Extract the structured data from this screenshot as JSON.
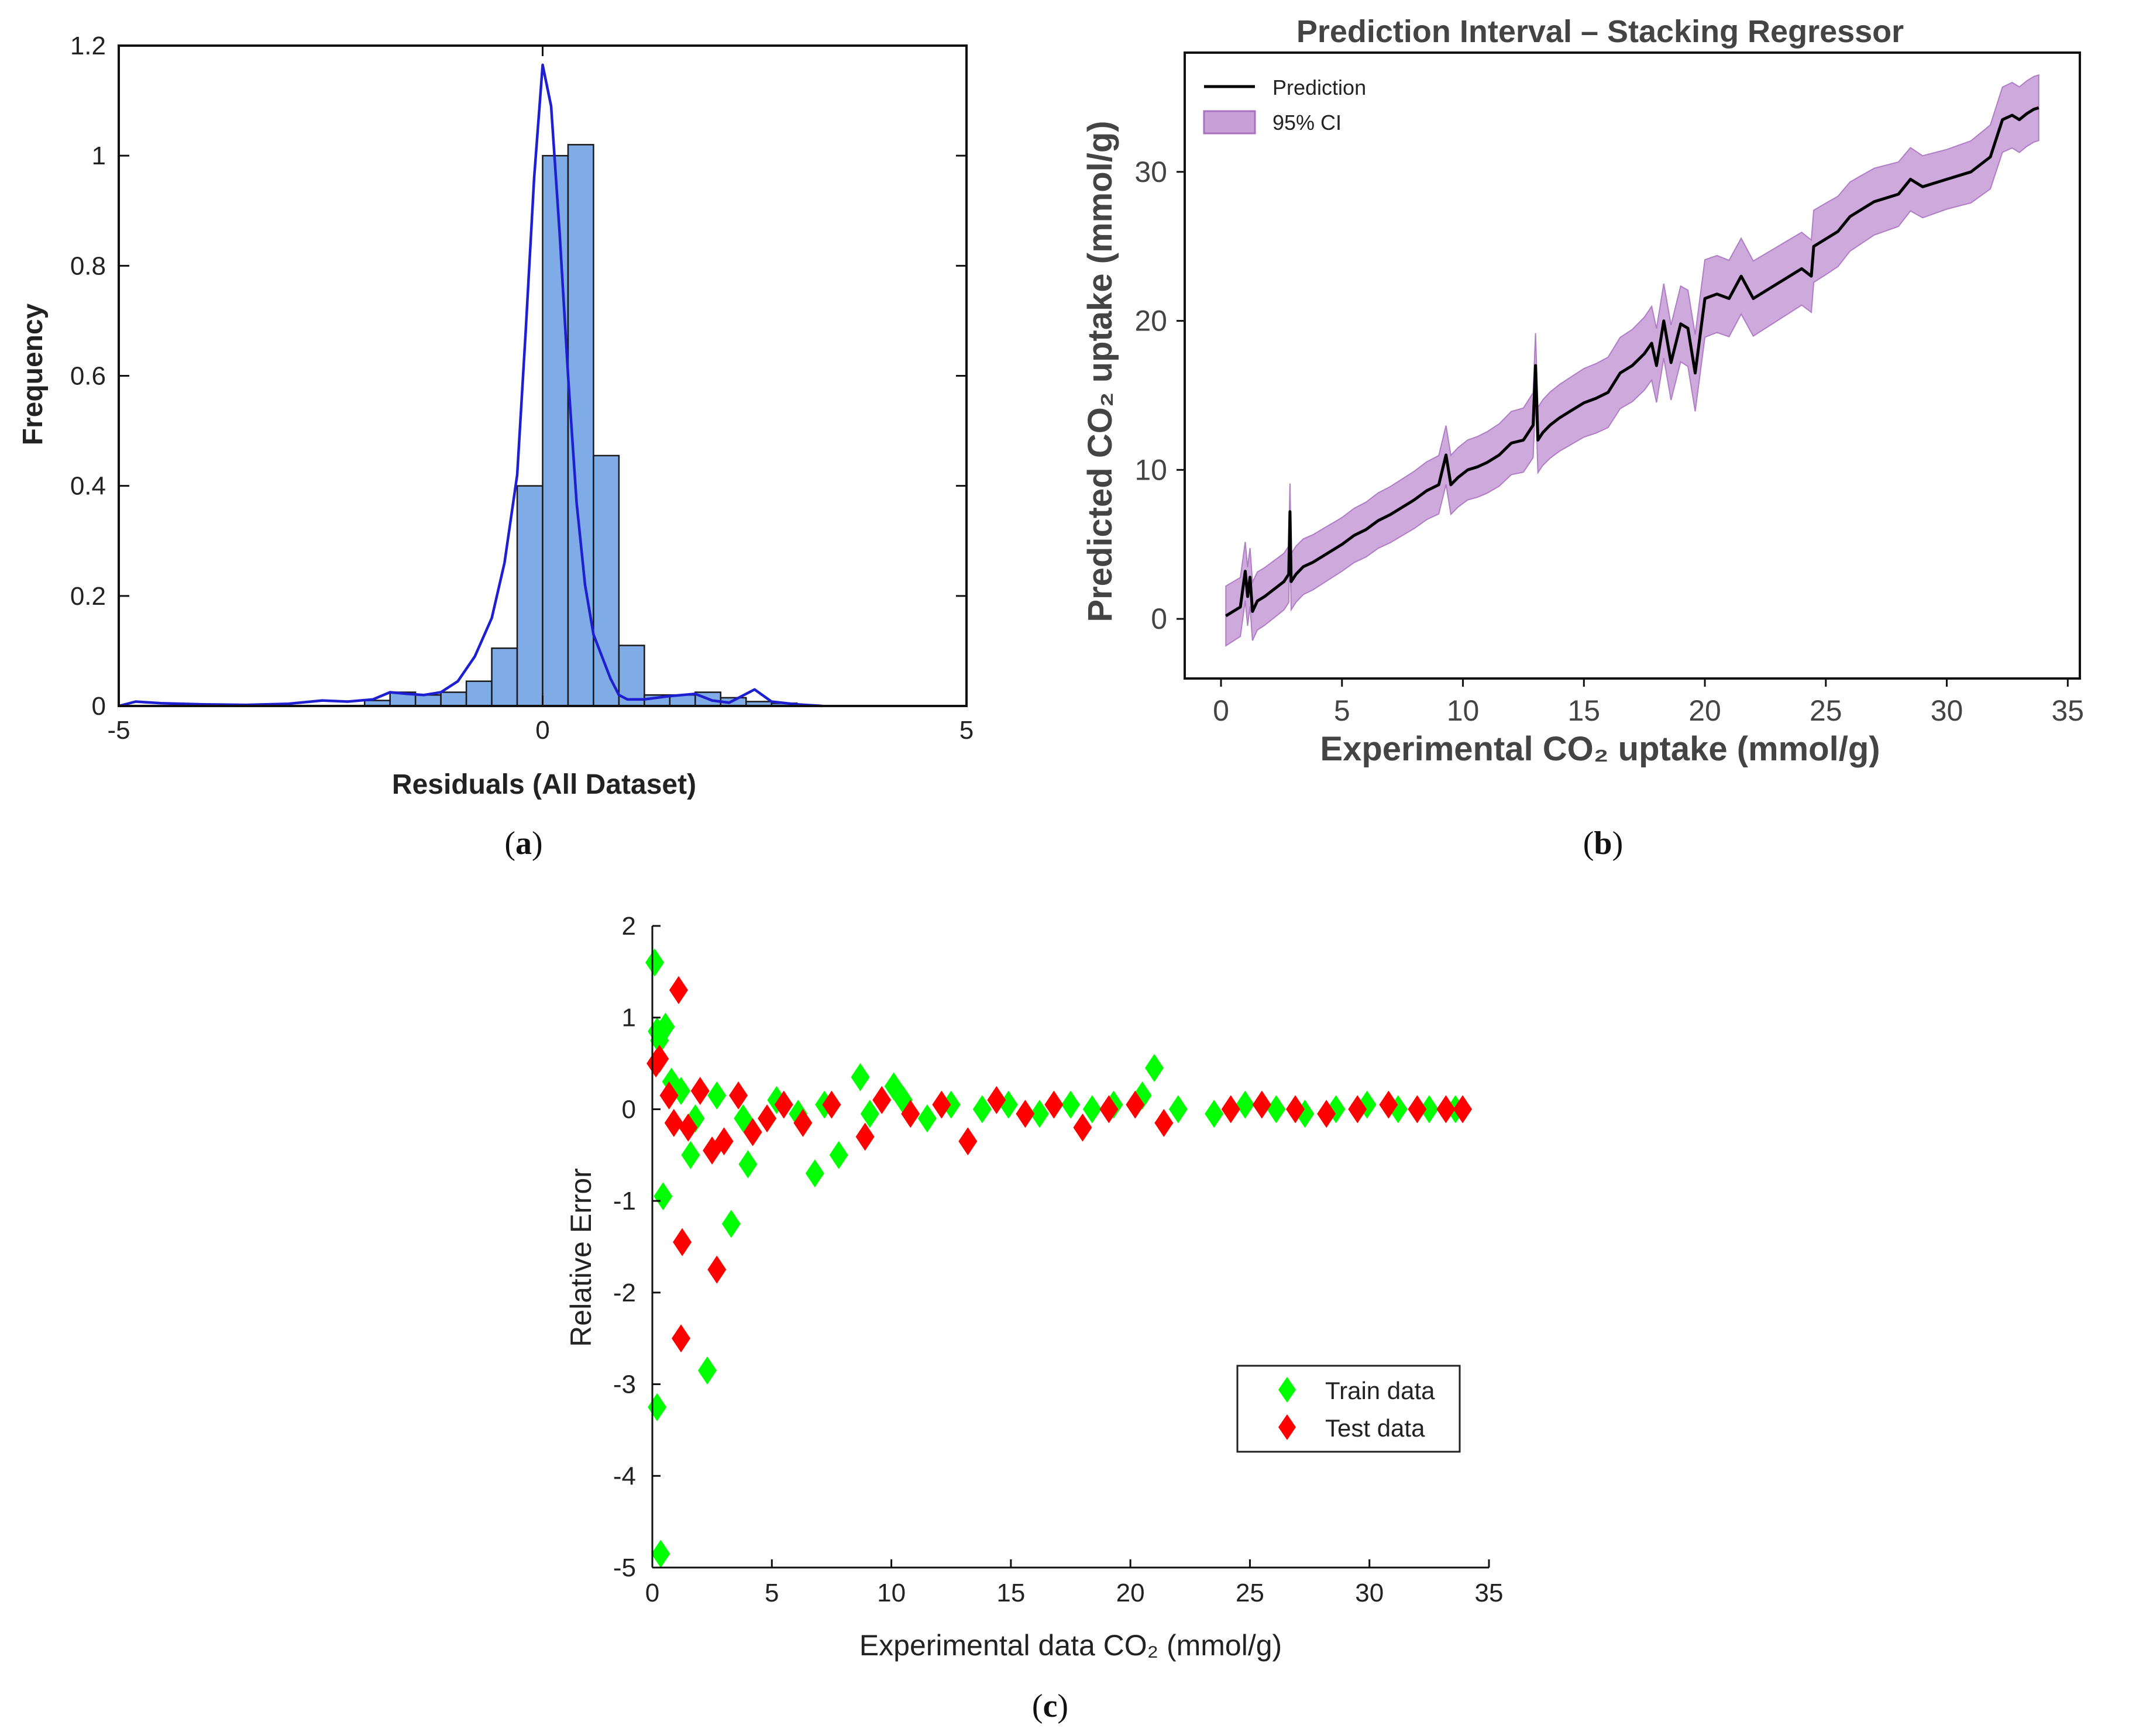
{
  "panel_labels": {
    "a": {
      "open": "(",
      "letter": "a",
      "close": ")"
    },
    "b": {
      "open": "(",
      "letter": "b",
      "close": ")"
    },
    "c": {
      "open": "(",
      "letter": "c",
      "close": ")"
    }
  },
  "chart_data": [
    {
      "id": "a",
      "type": "bar",
      "title": "",
      "xlabel": "Residuals (All Dataset)",
      "ylabel": "Frequency",
      "xlim": [
        -5,
        5
      ],
      "ylim": [
        0,
        1.2
      ],
      "xticks": [
        -5,
        0,
        5
      ],
      "yticks": [
        0,
        0.2,
        0.4,
        0.6,
        0.8,
        1,
        1.2
      ],
      "bin_width": 0.3,
      "bins": [
        {
          "x0": -2.1,
          "h": 0.01
        },
        {
          "x0": -1.8,
          "h": 0.025
        },
        {
          "x0": -1.5,
          "h": 0.02
        },
        {
          "x0": -1.2,
          "h": 0.025
        },
        {
          "x0": -0.9,
          "h": 0.045
        },
        {
          "x0": -0.6,
          "h": 0.105
        },
        {
          "x0": -0.3,
          "h": 0.4
        },
        {
          "x0": 0.0,
          "h": 1.0
        },
        {
          "x0": 0.3,
          "h": 1.02
        },
        {
          "x0": 0.6,
          "h": 0.455
        },
        {
          "x0": 0.9,
          "h": 0.11
        },
        {
          "x0": 1.2,
          "h": 0.02
        },
        {
          "x0": 1.5,
          "h": 0.02
        },
        {
          "x0": 1.8,
          "h": 0.025
        },
        {
          "x0": 2.1,
          "h": 0.015
        },
        {
          "x0": 2.4,
          "h": 0.008
        },
        {
          "x0": 2.7,
          "h": 0.005
        }
      ],
      "kde": {
        "x": [
          -5,
          -4.8,
          -4.5,
          -4,
          -3.5,
          -3,
          -2.6,
          -2.3,
          -2.0,
          -1.8,
          -1.6,
          -1.4,
          -1.2,
          -1.0,
          -0.8,
          -0.6,
          -0.45,
          -0.3,
          -0.2,
          -0.1,
          0.0,
          0.1,
          0.2,
          0.3,
          0.4,
          0.5,
          0.6,
          0.7,
          0.8,
          0.9,
          1.0,
          1.2,
          1.5,
          1.8,
          2.0,
          2.2,
          2.5,
          2.7,
          3.0,
          3.3
        ],
        "y": [
          0.0,
          0.008,
          0.005,
          0.003,
          0.002,
          0.004,
          0.01,
          0.008,
          0.012,
          0.025,
          0.022,
          0.02,
          0.025,
          0.045,
          0.09,
          0.16,
          0.26,
          0.42,
          0.68,
          0.96,
          1.165,
          1.09,
          0.86,
          0.6,
          0.37,
          0.22,
          0.13,
          0.09,
          0.05,
          0.02,
          0.012,
          0.012,
          0.018,
          0.022,
          0.01,
          0.006,
          0.03,
          0.008,
          0.003,
          0.0
        ]
      },
      "colors": {
        "bar": "#7fabe6",
        "bar_edge": "#1a1a1a",
        "kde": "#1f1fd2"
      }
    },
    {
      "id": "b",
      "type": "line",
      "title": "Prediction Interval – Stacking Regressor",
      "xlabel": "Experimental CO₂ uptake (mmol/g)",
      "ylabel": "Predicted CO₂ uptake (mmol/g)",
      "xlim": [
        -1.5,
        35.5
      ],
      "ylim": [
        -4,
        38
      ],
      "xticks": [
        0,
        5,
        10,
        15,
        20,
        25,
        30,
        35
      ],
      "yticks": [
        0,
        10,
        20,
        30
      ],
      "legend": {
        "placement": "top-left",
        "entries": [
          "Prediction",
          "95% CI"
        ]
      },
      "series": [
        {
          "name": "Prediction",
          "x": [
            0.2,
            0.5,
            0.8,
            1.0,
            1.1,
            1.2,
            1.3,
            1.5,
            1.8,
            2.2,
            2.6,
            2.8,
            2.85,
            2.9,
            3.1,
            3.4,
            3.8,
            4.2,
            4.6,
            5.0,
            5.5,
            6.0,
            6.5,
            7.0,
            7.5,
            8.0,
            8.5,
            9.0,
            9.3,
            9.5,
            9.8,
            10.2,
            10.6,
            11.0,
            11.5,
            12.0,
            12.5,
            12.9,
            13.0,
            13.1,
            13.3,
            13.6,
            14.0,
            14.5,
            15.0,
            15.5,
            16.0,
            16.5,
            17.0,
            17.5,
            17.8,
            18.0,
            18.3,
            18.6,
            19.0,
            19.3,
            19.6,
            20.0,
            20.5,
            21.0,
            21.5,
            22.0,
            23.0,
            24.0,
            24.4,
            24.5,
            25.0,
            25.5,
            26.0,
            26.5,
            27.0,
            28.0,
            28.5,
            29.0,
            30.0,
            31.0,
            31.8,
            32.3,
            32.7,
            33.0,
            33.3,
            33.6,
            33.8
          ],
          "y": [
            0.2,
            0.5,
            0.8,
            3.2,
            1.5,
            2.8,
            0.5,
            1.2,
            1.5,
            2.0,
            2.5,
            3.0,
            7.2,
            2.5,
            3.0,
            3.5,
            3.8,
            4.2,
            4.6,
            5.0,
            5.6,
            6.0,
            6.6,
            7.0,
            7.5,
            8.0,
            8.6,
            9.0,
            11.0,
            9.0,
            9.5,
            10.0,
            10.2,
            10.5,
            11.0,
            11.8,
            12.0,
            13.0,
            17.0,
            12.0,
            12.5,
            13.0,
            13.5,
            14.0,
            14.5,
            14.8,
            15.2,
            16.5,
            17.0,
            17.8,
            18.5,
            17.0,
            20.0,
            17.2,
            19.8,
            19.5,
            16.5,
            21.5,
            21.8,
            21.5,
            23.0,
            21.5,
            22.5,
            23.5,
            23.0,
            25.0,
            25.5,
            26.0,
            27.0,
            27.5,
            28.0,
            28.5,
            29.5,
            29.0,
            29.5,
            30.0,
            31.0,
            33.5,
            33.8,
            33.5,
            33.9,
            34.2,
            34.3
          ]
        }
      ],
      "ci_halfwidth": {
        "x": [
          0.2,
          5,
          10,
          15,
          20,
          25,
          30,
          32.5,
          33.8
        ],
        "w": [
          2.0,
          1.8,
          2.0,
          2.3,
          2.6,
          2.4,
          2.0,
          2.2,
          2.2
        ]
      },
      "colors": {
        "line": "#000000",
        "ci_fill": "#c9a0d8",
        "ci_edge": "#a870c0"
      }
    },
    {
      "id": "c",
      "type": "scatter",
      "title": "",
      "xlabel": "Experimental data CO₂ (mmol/g)",
      "ylabel": "Relative Error",
      "xlim": [
        0,
        35
      ],
      "ylim": [
        -5,
        2
      ],
      "xticks": [
        0,
        5,
        10,
        15,
        20,
        25,
        30,
        35
      ],
      "yticks": [
        -5,
        -4,
        -3,
        -2,
        -1,
        0,
        1,
        2
      ],
      "legend": {
        "placement": "lower-right",
        "entries": [
          "Train data",
          "Test data"
        ]
      },
      "series": [
        {
          "name": "Train data",
          "color": "#00ff00",
          "x": [
            0.1,
            0.2,
            0.3,
            0.45,
            0.55,
            0.2,
            0.35,
            1.6,
            1.8,
            2.3,
            3.3,
            4.0,
            6.8,
            7.8,
            8.7,
            10.1,
            21.0,
            20.5,
            0.8,
            1.2,
            2.7,
            3.8,
            5.2,
            6.1,
            7.2,
            9.1,
            10.5,
            11.5,
            12.5,
            13.8,
            14.9,
            16.2,
            17.5,
            18.4,
            19.3,
            22.0,
            23.5,
            24.8,
            26.1,
            27.3,
            28.6,
            29.9,
            31.2,
            32.5,
            33.6
          ],
          "y": [
            1.6,
            0.85,
            0.75,
            -0.95,
            0.9,
            -3.25,
            -4.85,
            -0.5,
            -0.1,
            -2.85,
            -1.25,
            -0.6,
            -0.7,
            -0.5,
            0.35,
            0.25,
            0.45,
            0.15,
            0.3,
            0.2,
            0.15,
            -0.1,
            0.1,
            -0.05,
            0.05,
            -0.05,
            0.1,
            -0.1,
            0.05,
            0.0,
            0.05,
            -0.05,
            0.05,
            0.0,
            0.05,
            0.0,
            -0.05,
            0.05,
            0.0,
            -0.05,
            0.0,
            0.05,
            0.0,
            0.0,
            0.0
          ]
        },
        {
          "name": "Test data",
          "color": "#ff0000",
          "x": [
            0.15,
            0.3,
            1.1,
            1.2,
            1.25,
            2.7,
            0.7,
            0.9,
            1.5,
            2.0,
            2.5,
            3.0,
            3.6,
            4.2,
            4.8,
            5.5,
            6.3,
            7.5,
            8.9,
            9.6,
            10.8,
            12.1,
            13.2,
            14.4,
            15.6,
            16.8,
            18.0,
            19.1,
            20.2,
            21.4,
            24.2,
            25.5,
            26.9,
            28.2,
            29.5,
            30.8,
            32.0,
            33.2,
            33.9
          ],
          "y": [
            0.5,
            0.55,
            1.3,
            -2.5,
            -1.45,
            -1.75,
            0.15,
            -0.15,
            -0.2,
            0.2,
            -0.45,
            -0.35,
            0.15,
            -0.25,
            -0.1,
            0.05,
            -0.15,
            0.05,
            -0.3,
            0.1,
            -0.05,
            0.05,
            -0.35,
            0.1,
            -0.05,
            0.05,
            -0.2,
            0.0,
            0.05,
            -0.15,
            0.0,
            0.05,
            0.0,
            -0.05,
            0.0,
            0.05,
            0.0,
            0.0,
            0.0
          ]
        }
      ]
    }
  ]
}
